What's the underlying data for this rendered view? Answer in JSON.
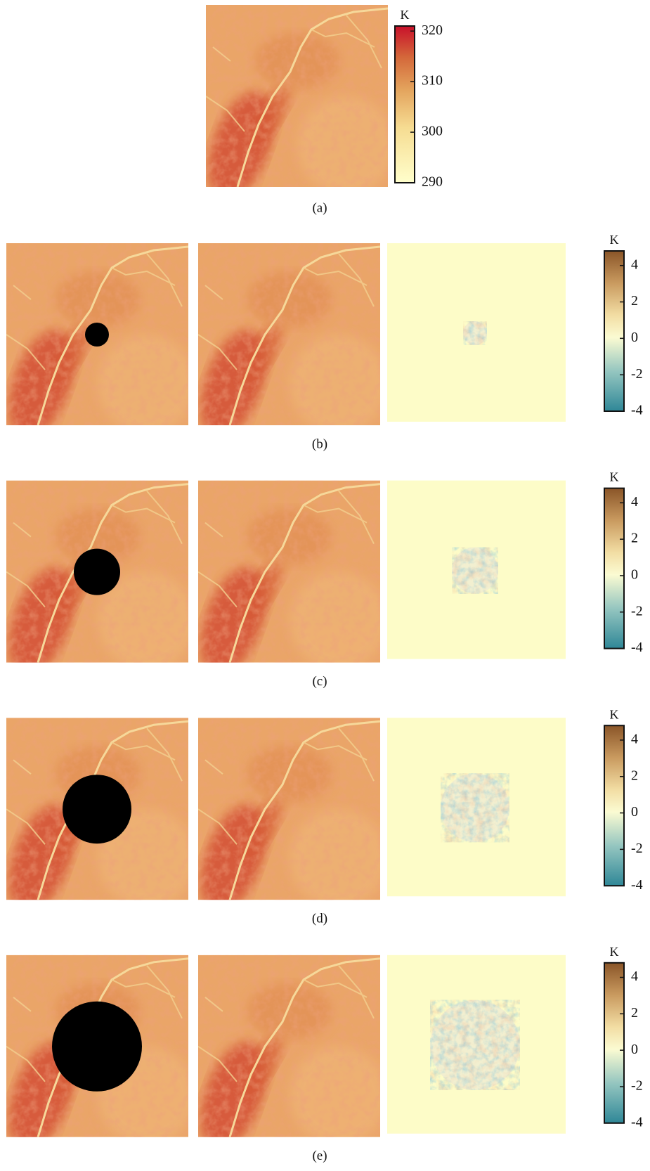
{
  "panels": [
    {
      "label": "(a)",
      "colorbar": {
        "unit": "K",
        "lim": [
          290,
          321
        ],
        "ticks": [
          320,
          310,
          300,
          290
        ]
      }
    },
    {
      "label": "(b)",
      "colorbar": {
        "unit": "K",
        "lim": [
          -4,
          4.8
        ],
        "ticks": [
          4,
          2,
          0,
          -2,
          -4
        ]
      }
    },
    {
      "label": "(c)",
      "colorbar": {
        "unit": "K",
        "lim": [
          -4,
          4.8
        ],
        "ticks": [
          4,
          2,
          0,
          -2,
          -4
        ]
      }
    },
    {
      "label": "(d)",
      "colorbar": {
        "unit": "K",
        "lim": [
          -4,
          4.8
        ],
        "ticks": [
          4,
          2,
          0,
          -2,
          -4
        ]
      }
    },
    {
      "label": "(e)",
      "colorbar": {
        "unit": "K",
        "lim": [
          -4,
          4.8
        ],
        "ticks": [
          4,
          2,
          0,
          -2,
          -4
        ]
      }
    }
  ]
}
